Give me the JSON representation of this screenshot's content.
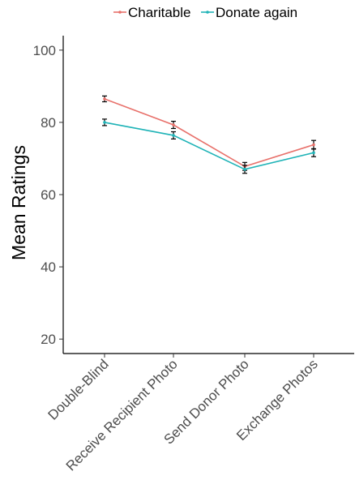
{
  "chart_data": {
    "type": "line",
    "title": "",
    "xlabel": "",
    "ylabel": "Mean Ratings",
    "categories": [
      "Double-Blind",
      "Receive Recipient Photo",
      "Send Donor Photo",
      "Exchange Photos"
    ],
    "ylim": [
      16,
      104
    ],
    "yticks": [
      20,
      40,
      60,
      80,
      100
    ],
    "grid": false,
    "legend_position": "top",
    "series": [
      {
        "name": "Charitable",
        "color": "#e8716b",
        "values": [
          86.5,
          79.3,
          67.8,
          73.8
        ],
        "error": [
          0.8,
          1.0,
          1.1,
          1.2
        ]
      },
      {
        "name": "Donate again",
        "color": "#1fb3b7",
        "values": [
          80.0,
          76.4,
          67.0,
          71.6
        ],
        "error": [
          0.9,
          1.0,
          1.1,
          1.1
        ]
      }
    ]
  }
}
